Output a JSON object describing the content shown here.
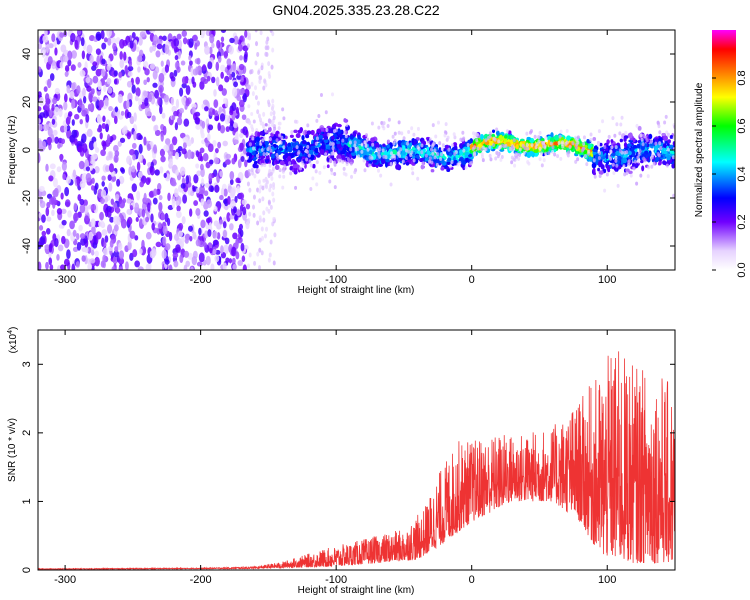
{
  "title": "GN04.2025.335.23.28.C22",
  "chart_data": [
    {
      "type": "heatmap",
      "xlabel": "Height of straight line (km)",
      "ylabel": "Frequency (Hz)",
      "xlim": [
        -320,
        150
      ],
      "ylim": [
        -50,
        50
      ],
      "x_ticks": [
        -300,
        -200,
        -100,
        0,
        100
      ],
      "y_ticks": [
        -40,
        -20,
        0,
        20,
        40
      ],
      "colorbar": {
        "label": "Normalized spectral amplitude",
        "range": [
          0,
          1
        ],
        "ticks": [
          0.0,
          0.2,
          0.4,
          0.6,
          0.8
        ],
        "tick_labels": [
          "0.0",
          "0.2",
          "0.4",
          "0.6",
          "0.8"
        ],
        "colors": [
          "#ffffff",
          "#e0c8ff",
          "#6a00ff",
          "#0000ff",
          "#00ffff",
          "#00ff00",
          "#ffff00",
          "#ff8000",
          "#ff0000",
          "#ff00ff"
        ]
      },
      "regions": [
        {
          "x_range": [
            -320,
            -165
          ],
          "freq_range": [
            -50,
            50
          ],
          "amplitude": 0.15,
          "description_level": "noise"
        },
        {
          "x_range": [
            -165,
            -90
          ],
          "freq_center": 0,
          "freq_halfwidth": 12,
          "amplitude": 0.35
        },
        {
          "x_range": [
            -90,
            0
          ],
          "freq_center": 0,
          "freq_halfwidth": 8,
          "amplitude": 0.45
        },
        {
          "x_range": [
            0,
            90
          ],
          "freq_center": 1,
          "freq_halfwidth": 5,
          "amplitude": 0.8
        },
        {
          "x_range": [
            90,
            150
          ],
          "freq_center": 0,
          "freq_halfwidth": 10,
          "amplitude": 0.4
        }
      ]
    },
    {
      "type": "line",
      "xlabel": "Height of straight line (km)",
      "ylabel": "SNR (10 * v/v)",
      "y_multiplier_label": "(x10",
      "y_multiplier_exp": "4",
      "y_multiplier_close": ")",
      "xlim": [
        -320,
        150
      ],
      "ylim": [
        0,
        3.5
      ],
      "x_ticks": [
        -300,
        -200,
        -100,
        0,
        100
      ],
      "y_ticks": [
        0,
        1,
        2,
        3
      ],
      "color": "#ee3333",
      "envelope": [
        {
          "x": -320,
          "y": 0.02
        },
        {
          "x": -200,
          "y": 0.03
        },
        {
          "x": -160,
          "y": 0.05
        },
        {
          "x": -140,
          "y": 0.12
        },
        {
          "x": -110,
          "y": 0.3
        },
        {
          "x": -80,
          "y": 0.45
        },
        {
          "x": -50,
          "y": 0.6
        },
        {
          "x": -35,
          "y": 0.9
        },
        {
          "x": -25,
          "y": 1.4
        },
        {
          "x": -10,
          "y": 1.9
        },
        {
          "x": 0,
          "y": 1.9
        },
        {
          "x": 20,
          "y": 2.0
        },
        {
          "x": 40,
          "y": 2.0
        },
        {
          "x": 60,
          "y": 2.1
        },
        {
          "x": 80,
          "y": 2.5
        },
        {
          "x": 95,
          "y": 2.9
        },
        {
          "x": 105,
          "y": 3.3
        },
        {
          "x": 120,
          "y": 3.0
        },
        {
          "x": 140,
          "y": 2.9
        },
        {
          "x": 150,
          "y": 2.6
        }
      ],
      "baseline": [
        {
          "x": -320,
          "y": 0.01
        },
        {
          "x": -160,
          "y": 0.02
        },
        {
          "x": -100,
          "y": 0.05
        },
        {
          "x": -40,
          "y": 0.15
        },
        {
          "x": -20,
          "y": 0.4
        },
        {
          "x": 0,
          "y": 0.7
        },
        {
          "x": 30,
          "y": 1.0
        },
        {
          "x": 60,
          "y": 1.0
        },
        {
          "x": 80,
          "y": 0.7
        },
        {
          "x": 95,
          "y": 0.2
        },
        {
          "x": 120,
          "y": 0.1
        },
        {
          "x": 150,
          "y": 0.1
        }
      ]
    }
  ]
}
